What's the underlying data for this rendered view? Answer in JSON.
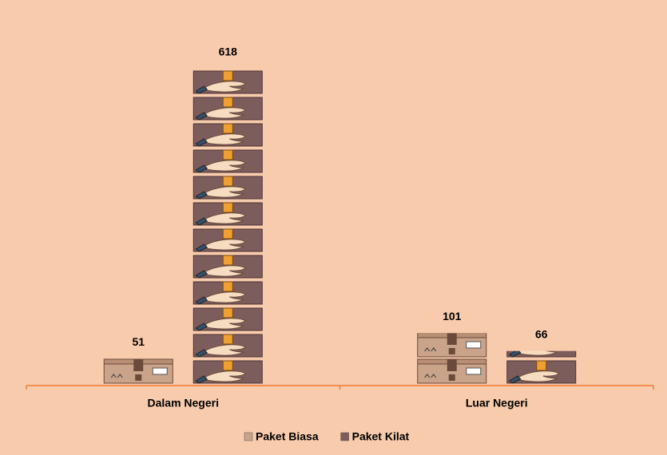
{
  "chart_data": {
    "type": "pictograph",
    "categories": [
      "Dalam Negeri",
      "Luar Negeri"
    ],
    "series": [
      {
        "name": "Paket Biasa",
        "color": "#c9a48a",
        "values": [
          51,
          101
        ]
      },
      {
        "name": "Paket Kilat",
        "color": "#7d5c5c",
        "values": [
          618,
          66
        ]
      }
    ]
  }
}
